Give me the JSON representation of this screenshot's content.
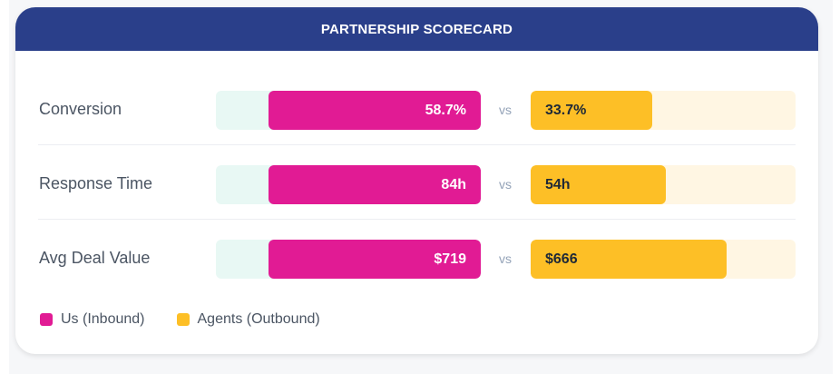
{
  "header": {
    "title": "PARTNERSHIP SCORECARD"
  },
  "chart_data": {
    "type": "bar",
    "orientation": "horizontal-diverging",
    "categories": [
      "Conversion",
      "Response Time",
      "Avg Deal Value"
    ],
    "series": [
      {
        "name": "Us (Inbound)",
        "color": "#e11b94",
        "values": [
          58.7,
          84,
          719
        ],
        "labels": [
          "58.7%",
          "84h",
          "$719"
        ],
        "fill_fraction": [
          0.8,
          0.8,
          0.8
        ]
      },
      {
        "name": "Agents (Outbound)",
        "color": "#fdbf26",
        "values": [
          33.7,
          54,
          666
        ],
        "labels": [
          "33.7%",
          "54h",
          "$666"
        ],
        "fill_fraction": [
          0.46,
          0.51,
          0.74
        ]
      }
    ],
    "separator": "vs",
    "legend": "bottom-left"
  },
  "colors": {
    "header_bg": "#2a3f8a",
    "left_track": "#e8f8f4",
    "right_track": "#fff6e3"
  }
}
